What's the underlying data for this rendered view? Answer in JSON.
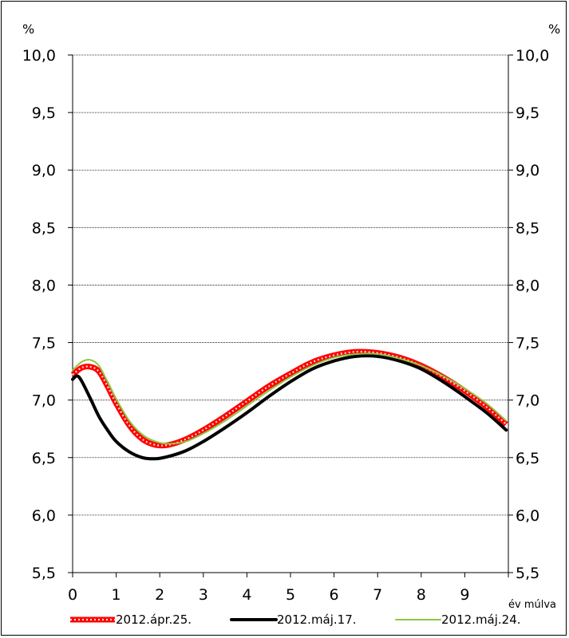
{
  "chart_data": {
    "type": "line",
    "y_unit_left": "%",
    "y_unit_right": "%",
    "xlabel": "év múlva",
    "x_ticks": [
      "0",
      "1",
      "2",
      "3",
      "4",
      "5",
      "6",
      "7",
      "8",
      "9"
    ],
    "y_ticks": [
      "5,5",
      "6,0",
      "6,5",
      "7,0",
      "7,5",
      "8,0",
      "8,5",
      "9,0",
      "9,5",
      "10,0"
    ],
    "xlim": [
      0,
      10
    ],
    "ylim": [
      5.5,
      10.0
    ],
    "grid": "horizontal",
    "legend_position": "bottom",
    "series": [
      {
        "name": "2012.ápr.25.",
        "color": "#ff0000",
        "style": "dotted-thick",
        "x": [
          0,
          0.2,
          0.4,
          0.6,
          0.8,
          1.0,
          1.3,
          1.6,
          1.9,
          2.2,
          2.6,
          3.0,
          3.5,
          4.0,
          4.5,
          5.0,
          5.5,
          6.0,
          6.5,
          7.0,
          7.5,
          8.0,
          8.5,
          9.0,
          9.5,
          9.95
        ],
        "values": [
          7.22,
          7.28,
          7.29,
          7.25,
          7.12,
          6.97,
          6.78,
          6.66,
          6.61,
          6.61,
          6.66,
          6.74,
          6.86,
          6.99,
          7.12,
          7.23,
          7.33,
          7.39,
          7.42,
          7.41,
          7.37,
          7.3,
          7.2,
          7.08,
          6.94,
          6.79
        ]
      },
      {
        "name": "2012.máj.17.",
        "color": "#000000",
        "style": "solid-thick",
        "x": [
          0,
          0.1,
          0.2,
          0.4,
          0.6,
          0.8,
          1.0,
          1.3,
          1.6,
          1.9,
          2.2,
          2.6,
          3.0,
          3.5,
          4.0,
          4.5,
          5.0,
          5.5,
          6.0,
          6.5,
          7.0,
          7.5,
          8.0,
          8.5,
          9.0,
          9.5,
          9.95
        ],
        "values": [
          7.18,
          7.21,
          7.17,
          7.02,
          6.86,
          6.74,
          6.64,
          6.55,
          6.5,
          6.49,
          6.51,
          6.56,
          6.64,
          6.76,
          6.89,
          7.03,
          7.16,
          7.27,
          7.34,
          7.38,
          7.38,
          7.34,
          7.27,
          7.16,
          7.03,
          6.89,
          6.74
        ]
      },
      {
        "name": "2012.máj.24.",
        "color": "#8dc63f",
        "style": "solid-thin",
        "x": [
          0,
          0.2,
          0.4,
          0.6,
          0.8,
          1.0,
          1.3,
          1.6,
          1.9,
          2.2,
          2.6,
          3.0,
          3.5,
          4.0,
          4.5,
          5.0,
          5.5,
          6.0,
          6.5,
          7.0,
          7.5,
          8.0,
          8.5,
          9.0,
          9.5,
          9.95
        ],
        "values": [
          7.26,
          7.33,
          7.35,
          7.3,
          7.16,
          7.01,
          6.82,
          6.7,
          6.64,
          6.62,
          6.64,
          6.71,
          6.82,
          6.95,
          7.08,
          7.2,
          7.3,
          7.37,
          7.4,
          7.4,
          7.36,
          7.3,
          7.21,
          7.1,
          6.97,
          6.82
        ]
      }
    ]
  }
}
